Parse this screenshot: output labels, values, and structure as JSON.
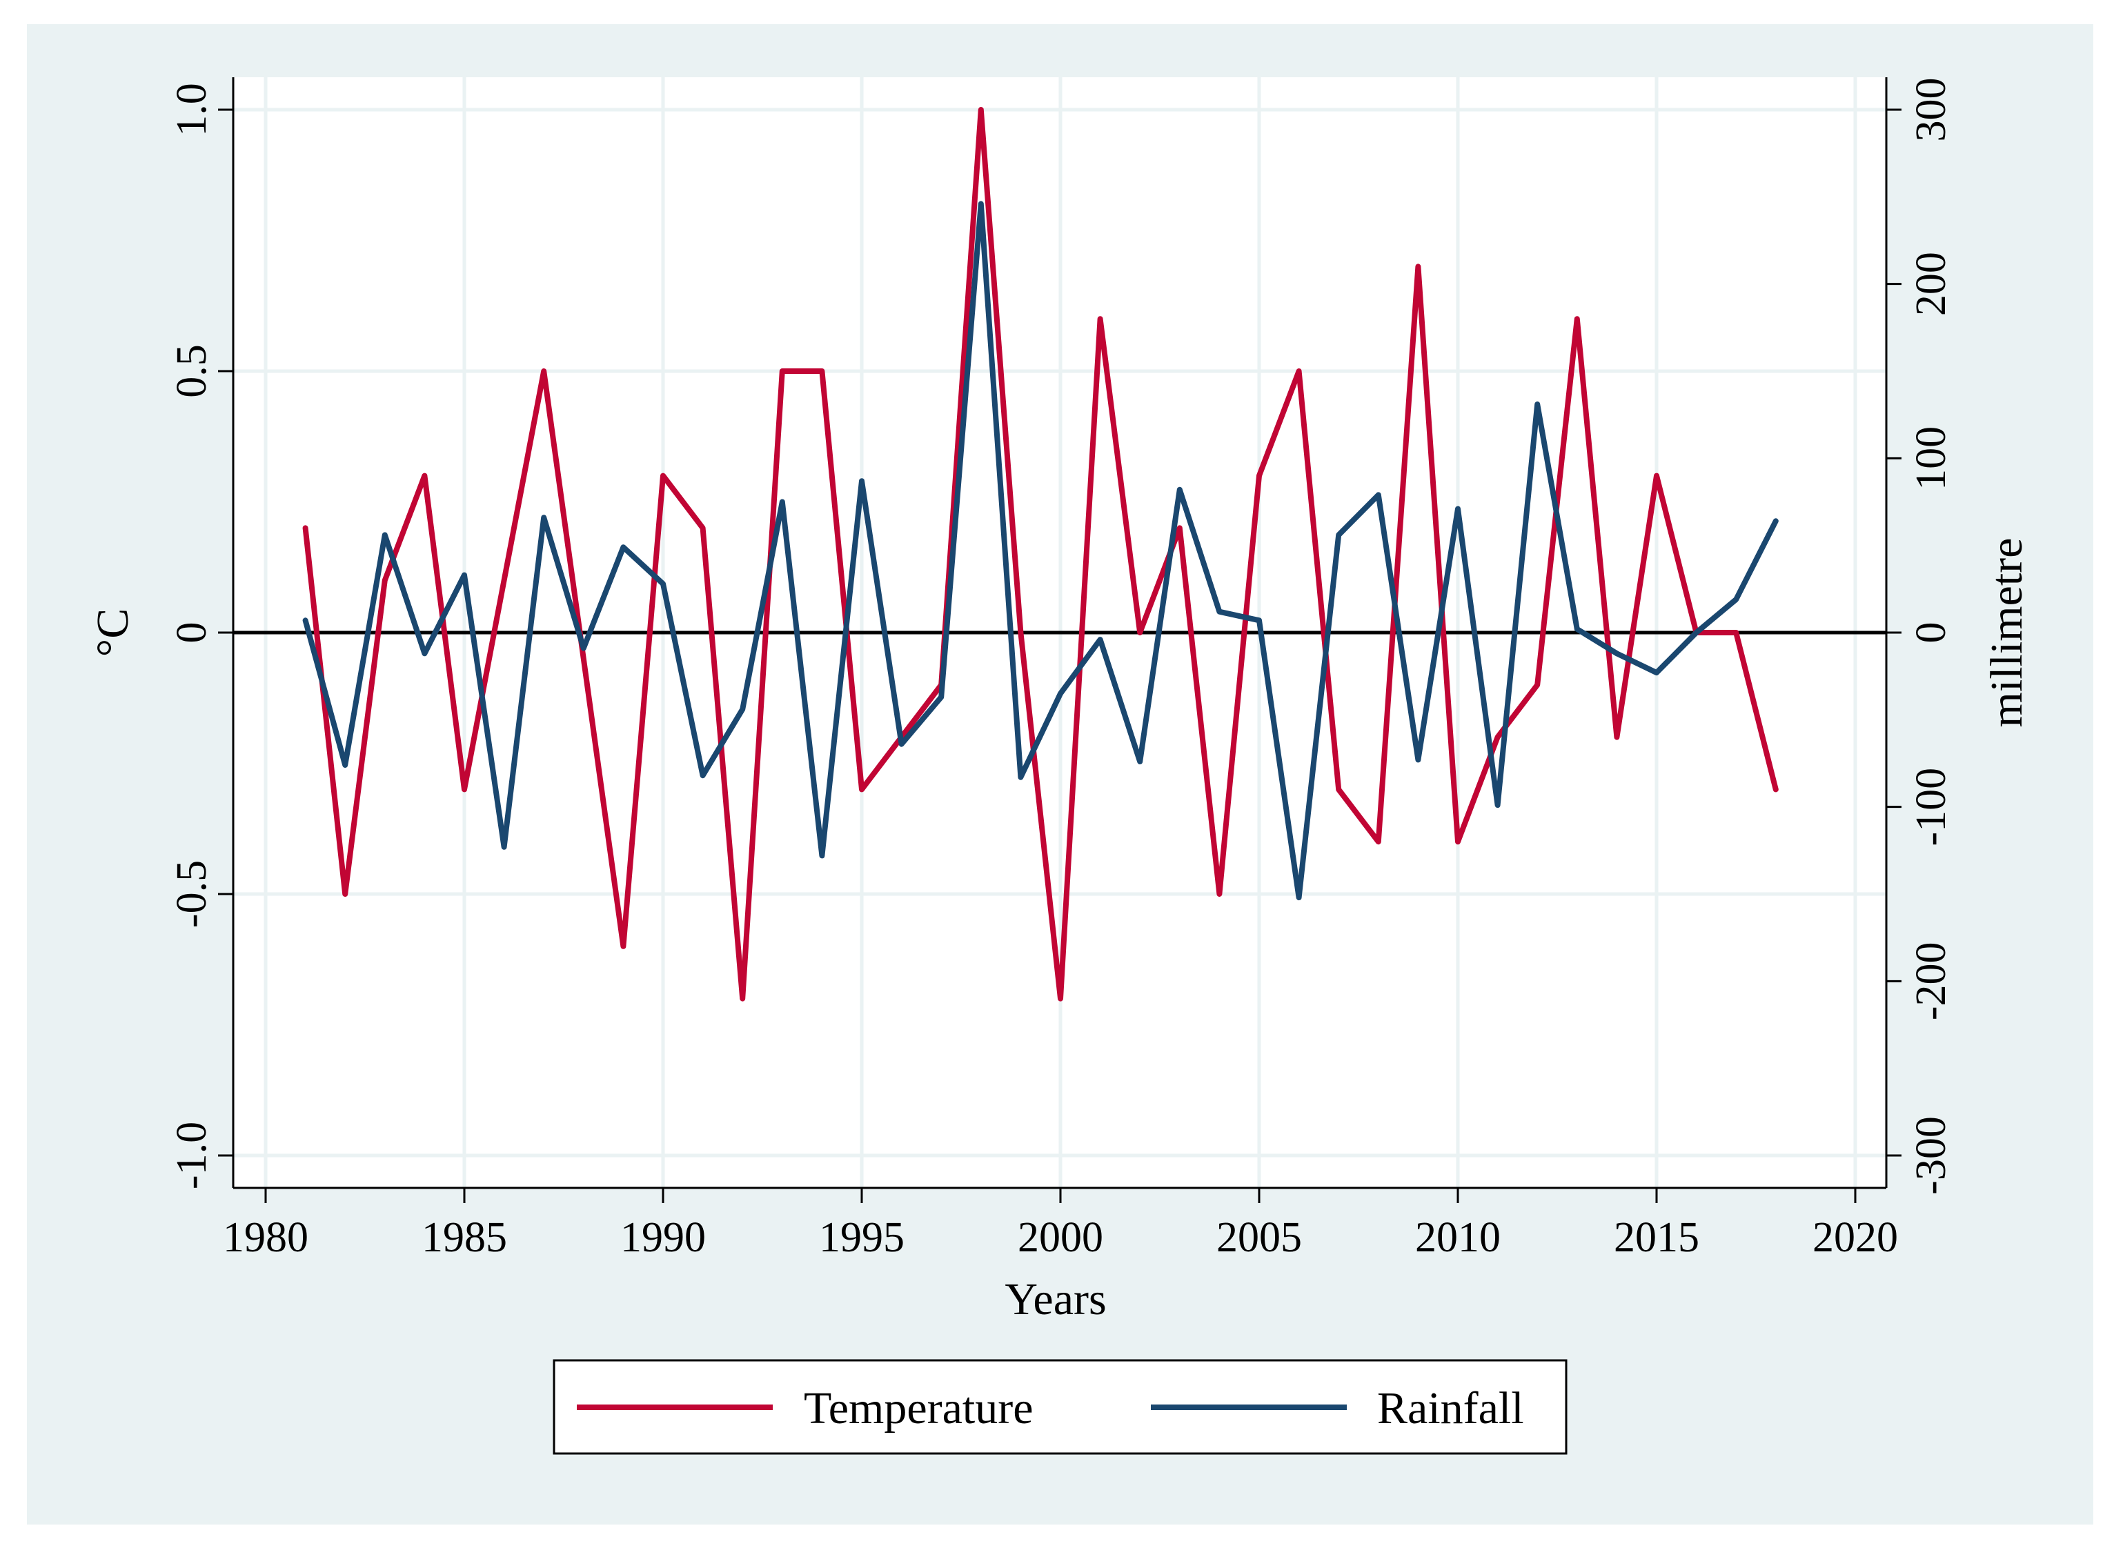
{
  "chart_data": {
    "type": "line",
    "xlabel": "Years",
    "ylabel": "°C",
    "y2label": "millimetre",
    "xlim": [
      1980,
      2020
    ],
    "ylim": [
      -1.0,
      1.0
    ],
    "y2lim": [
      -300,
      300
    ],
    "x_ticks": [
      "1980",
      "1985",
      "1990",
      "1995",
      "2000",
      "2005",
      "2010",
      "2015",
      "2020"
    ],
    "y_ticks": [
      "-1.0",
      "-0.5",
      "0",
      "0.5",
      "1.0"
    ],
    "y2_ticks": [
      "-300",
      "-200",
      "-100",
      "0",
      "100",
      "200",
      "300"
    ],
    "grid": true,
    "reference_line": 0,
    "legend_position": "bottom",
    "x": [
      1981,
      1982,
      1983,
      1984,
      1985,
      1986,
      1987,
      1988,
      1989,
      1990,
      1991,
      1992,
      1993,
      1994,
      1995,
      1996,
      1997,
      1998,
      1999,
      2000,
      2001,
      2002,
      2003,
      2004,
      2005,
      2006,
      2007,
      2008,
      2009,
      2010,
      2011,
      2012,
      2013,
      2014,
      2015,
      2016,
      2017,
      2018
    ],
    "series": [
      {
        "name": "Temperature",
        "axis": "left",
        "color": "#c10534",
        "values": [
          0.2,
          -0.5,
          0.1,
          0.3,
          -0.3,
          0.1,
          0.5,
          -0.05,
          -0.6,
          0.3,
          0.2,
          -0.7,
          0.5,
          0.5,
          -0.3,
          -0.2,
          -0.1,
          1.0,
          0.0,
          -0.7,
          0.6,
          0.0,
          0.2,
          -0.5,
          0.3,
          0.5,
          -0.3,
          -0.4,
          0.7,
          -0.4,
          -0.2,
          -0.1,
          0.6,
          -0.2,
          0.3,
          0.0,
          0.0,
          -0.3
        ]
      },
      {
        "name": "Rainfall",
        "axis": "right",
        "color": "#1a476f",
        "values": [
          7,
          -76,
          56,
          -12,
          33,
          -123,
          66,
          -9,
          49,
          28,
          -82,
          -44,
          75,
          -128,
          87,
          -64,
          -37,
          246,
          -83,
          -35,
          -4,
          -74,
          82,
          12,
          7,
          -152,
          56,
          79,
          -73,
          71,
          -99,
          131,
          2,
          -12,
          -23,
          0,
          19,
          64
        ]
      }
    ]
  }
}
